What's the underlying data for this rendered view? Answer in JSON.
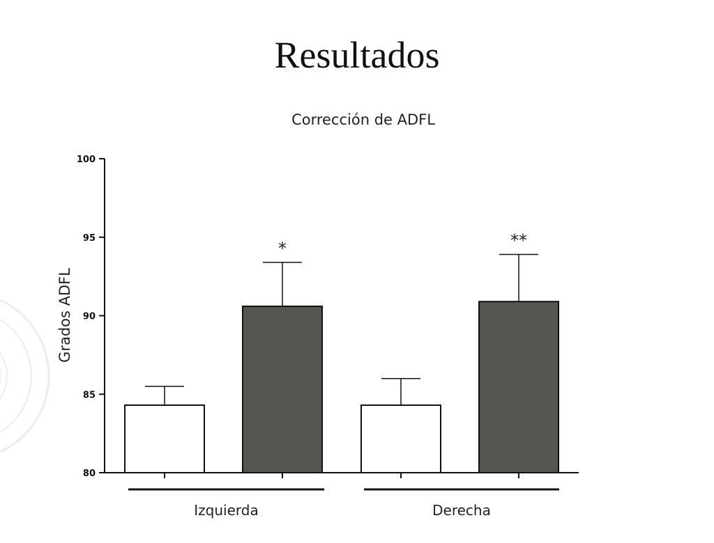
{
  "slide": {
    "title": "Resultados"
  },
  "chart_data": {
    "type": "bar",
    "title": "Corrección de ADFL",
    "ylabel": "Grados ADFL",
    "xlabel": "",
    "ylim": [
      80,
      100
    ],
    "yticks": [
      80,
      85,
      90,
      95,
      100
    ],
    "groups": [
      {
        "label": "Izquierda"
      },
      {
        "label": "Derecha"
      }
    ],
    "bars": [
      {
        "group": "Izquierda",
        "value": 84.3,
        "error": 1.2,
        "color": "#ffffff",
        "significance": ""
      },
      {
        "group": "Izquierda",
        "value": 90.6,
        "error": 2.8,
        "color": "#555650",
        "significance": "*"
      },
      {
        "group": "Derecha",
        "value": 84.3,
        "error": 1.7,
        "color": "#ffffff",
        "significance": ""
      },
      {
        "group": "Derecha",
        "value": 90.9,
        "error": 3.0,
        "color": "#555650",
        "significance": "**"
      }
    ],
    "grid": false
  }
}
